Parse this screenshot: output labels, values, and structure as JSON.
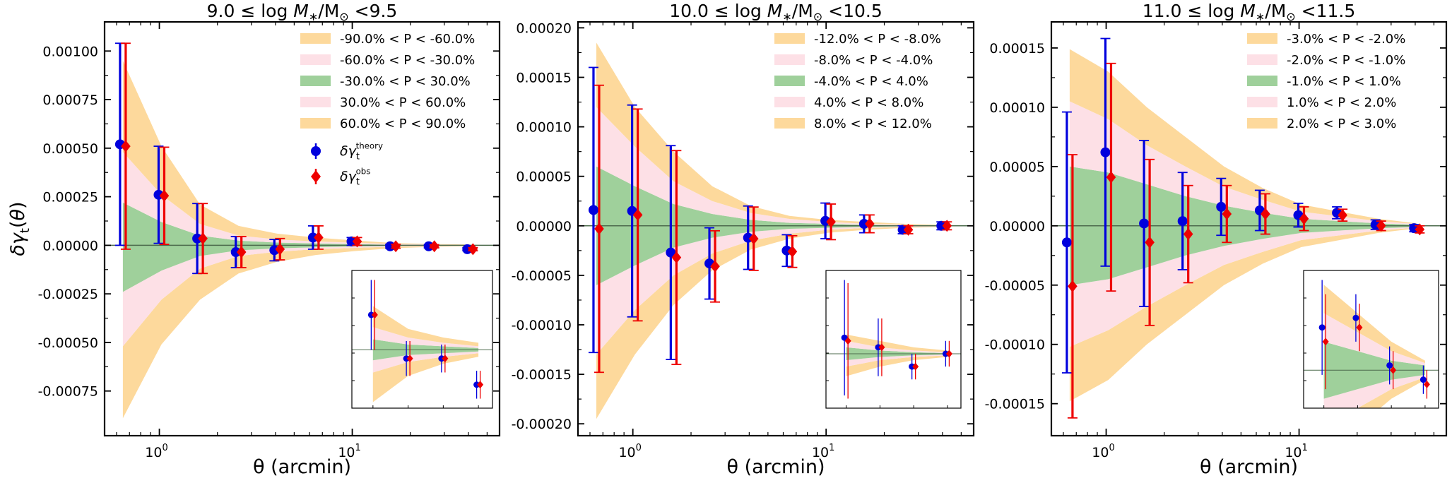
{
  "figure": {
    "ylabel": "δγ_t(θ)",
    "colors": {
      "band_outer": "#fdd99c",
      "band_mid": "#fde0e6",
      "band_inner": "#9fd09b",
      "theory": "#0000dd",
      "obs": "#ee0000",
      "zero_line": "#4d6b4d"
    }
  },
  "chart_data": [
    {
      "type": "scatter",
      "title": "9.0 ≤ log M*/M⊙ <9.5",
      "title_prefix": "9.0",
      "title_suffix": "<9.5",
      "xlabel": "θ (arcmin)",
      "ylabel": "δγ_t(θ)",
      "xscale": "log",
      "xlim": [
        0.52,
        58
      ],
      "ylim": [
        -0.00098,
        0.00115
      ],
      "yticks": [
        -0.00075,
        -0.0005,
        -0.00025,
        0.0,
        0.00025,
        0.0005,
        0.00075,
        0.001
      ],
      "ytick_labels": [
        "-0.00075",
        "-0.00050",
        "-0.00025",
        "0.00000",
        "0.00025",
        "0.00050",
        "0.00075",
        "0.00100"
      ],
      "xticks": [
        1,
        10
      ],
      "xtick_labels": [
        "10^0",
        "10^1"
      ],
      "legend": {
        "bands": [
          "-90.0% < P < -60.0%",
          "-60.0% < P < -30.0%",
          "-30.0% < P < 30.0%",
          "30.0% < P < 60.0%",
          "60.0% < P < 90.0%"
        ],
        "theory": "δγ_t^theory",
        "obs": "δγ_t^obs"
      },
      "theta": [
        0.647,
        1.025,
        1.625,
        2.575,
        4.081,
        6.468,
        10.25,
        16.25,
        25.75,
        40.81
      ],
      "bands": {
        "p90": [
          0.00095,
          0.00051,
          0.00021,
          0.0001,
          6e-05,
          4e-05,
          2.5e-05,
          1.2e-05,
          7e-06,
          4e-06
        ],
        "p60": [
          0.00048,
          0.00026,
          0.00011,
          5e-05,
          3e-05,
          2e-05,
          1.3e-05,
          7e-06,
          4e-06,
          2e-06
        ],
        "p30": [
          0.00022,
          0.00012,
          5e-05,
          2.4e-05,
          1.4e-05,
          1e-05,
          6e-06,
          3e-06,
          2e-06,
          1e-06
        ],
        "m30": [
          -0.00024,
          -0.00013,
          -5.5e-05,
          -2.6e-05,
          -1.6e-05,
          -1e-05,
          -6e-06,
          -3e-06,
          -2e-06,
          -1e-06
        ],
        "m60": [
          -0.00052,
          -0.00028,
          -0.00012,
          -5.5e-05,
          -3.3e-05,
          -2e-05,
          -1.3e-05,
          -7e-06,
          -4e-06,
          -2e-06
        ],
        "m90": [
          -0.00089,
          -0.00051,
          -0.00028,
          -0.000145,
          -8.5e-05,
          -5e-05,
          -3e-05,
          -1.5e-05,
          -8e-06,
          -4e-06
        ]
      },
      "theory": {
        "y": [
          0.00052,
          0.00026,
          3.5e-05,
          -3.5e-05,
          -2.5e-05,
          4e-05,
          2e-05,
          -5e-06,
          -5e-06,
          -2e-05
        ],
        "err": [
          0.00052,
          0.00025,
          0.00018,
          8e-05,
          5.5e-05,
          6e-05,
          2e-05,
          1e-05,
          8e-06,
          8e-06
        ]
      },
      "obs": {
        "y": [
          0.00051,
          0.000255,
          3.5e-05,
          -3.5e-05,
          -2e-05,
          4e-05,
          2e-05,
          -5e-06,
          -5e-06,
          -2e-05
        ],
        "err": [
          0.00053,
          0.00025,
          0.00018,
          8e-05,
          5.5e-05,
          6e-05,
          2e-05,
          1e-05,
          8e-06,
          8e-06
        ]
      },
      "inset": {
        "points_from_index": 6
      }
    },
    {
      "type": "scatter",
      "title": "10.0 ≤ log M*/M⊙ <10.5",
      "title_prefix": "10.0",
      "title_suffix": "<10.5",
      "xlabel": "θ (arcmin)",
      "ylabel": "δγ_t(θ)",
      "xscale": "log",
      "xlim": [
        0.52,
        58
      ],
      "ylim": [
        -0.000212,
        0.000206
      ],
      "yticks": [
        -0.0002,
        -0.00015,
        -0.0001,
        -5e-05,
        0.0,
        5e-05,
        0.0001,
        0.00015,
        0.0002
      ],
      "ytick_labels": [
        "-0.00020",
        "-0.00015",
        "-0.00010",
        "-0.00005",
        "0.00000",
        "0.00005",
        "0.00010",
        "0.00015",
        "0.00020"
      ],
      "xticks": [
        1,
        10
      ],
      "xtick_labels": [
        "10^0",
        "10^1"
      ],
      "legend": {
        "bands": [
          "-12.0% < P < -8.0%",
          "-8.0% < P < -4.0%",
          "-4.0% < P < 4.0%",
          "4.0% < P < 8.0%",
          "8.0% < P < 12.0%"
        ]
      },
      "theta": [
        0.647,
        1.025,
        1.625,
        2.575,
        4.081,
        6.468,
        10.25,
        16.25,
        25.75,
        40.81
      ],
      "bands": {
        "p90": [
          0.000185,
          0.00012,
          7.5e-05,
          4e-05,
          2e-05,
          1e-05,
          6e-06,
          4e-06,
          2e-06,
          1e-06
        ],
        "p60": [
          0.00012,
          8e-05,
          4.5e-05,
          2.5e-05,
          1.3e-05,
          7e-06,
          4e-06,
          2e-06,
          1e-06,
          5e-07
        ],
        "p30": [
          6e-05,
          4e-05,
          2.2e-05,
          1.2e-05,
          6e-06,
          3e-06,
          2e-06,
          1e-06,
          5e-07,
          2e-07
        ],
        "m30": [
          -6e-05,
          -4e-05,
          -2.2e-05,
          -1.2e-05,
          -6e-06,
          -3e-06,
          -2e-06,
          -1e-06,
          -5e-07,
          -2e-07
        ],
        "m60": [
          -0.00013,
          -8.5e-05,
          -5e-05,
          -2.8e-05,
          -1.5e-05,
          -8e-06,
          -4e-06,
          -2e-06,
          -1e-06,
          -5e-07
        ],
        "m90": [
          -0.000195,
          -0.00013,
          -8e-05,
          -4.5e-05,
          -2.4e-05,
          -1.3e-05,
          -7e-06,
          -4e-06,
          -2e-06,
          -1e-06
        ]
      },
      "theory": {
        "y": [
          1.6e-05,
          1.5e-05,
          -2.7e-05,
          -3.8e-05,
          -1.2e-05,
          -2.5e-05,
          5e-06,
          2e-06,
          -4e-06,
          0.0
        ],
        "err": [
          0.000144,
          0.000107,
          0.000108,
          3.6e-05,
          3.2e-05,
          1.6e-05,
          1.8e-05,
          9e-06,
          4e-06,
          4e-06
        ]
      },
      "obs": {
        "y": [
          -3e-06,
          1.1e-05,
          -3.2e-05,
          -4.1e-05,
          -1.3e-05,
          -2.6e-05,
          4e-06,
          2e-06,
          -4e-06,
          0.0
        ],
        "err": [
          0.000145,
          0.000107,
          0.000108,
          3.6e-05,
          3.2e-05,
          1.6e-05,
          1.8e-05,
          9e-06,
          4e-06,
          4e-06
        ]
      },
      "inset": {
        "points_from_index": 6
      }
    },
    {
      "type": "scatter",
      "title": "11.0 ≤ log M*/M⊙ <11.5",
      "title_prefix": "11.0",
      "title_suffix": "<11.5",
      "xlabel": "θ (arcmin)",
      "ylabel": "δγ_t(θ)",
      "xscale": "log",
      "xlim": [
        0.52,
        58
      ],
      "ylim": [
        -0.000177,
        0.000172
      ],
      "yticks": [
        -0.00015,
        -0.0001,
        -5e-05,
        0.0,
        5e-05,
        0.0001,
        0.00015
      ],
      "ytick_labels": [
        "-0.00015",
        "-0.00010",
        "-0.00005",
        "0.00000",
        "0.00005",
        "0.00010",
        "0.00015"
      ],
      "xticks": [
        1,
        10
      ],
      "xtick_labels": [
        "10^0",
        "10^1"
      ],
      "legend": {
        "bands": [
          "-3.0% < P < -2.0%",
          "-2.0% < P < -1.0%",
          "-1.0% < P < 1.0%",
          "1.0% < P < 2.0%",
          "2.0% < P < 3.0%"
        ]
      },
      "theta": [
        0.647,
        1.025,
        1.625,
        2.575,
        4.081,
        6.468,
        10.25,
        16.25,
        25.75,
        40.81
      ],
      "bands": {
        "p90": [
          0.000149,
          0.00013,
          0.0001,
          7.5e-05,
          5e-05,
          3.2e-05,
          1.8e-05,
          1.2e-05,
          6e-06,
          2e-06
        ],
        "p60": [
          0.000105,
          9e-05,
          6.8e-05,
          5e-05,
          3.3e-05,
          2.2e-05,
          1.2e-05,
          8e-06,
          4e-06,
          1.5e-06
        ],
        "p30": [
          5e-05,
          4.5e-05,
          3.5e-05,
          2.5e-05,
          1.7e-05,
          1.1e-05,
          6e-06,
          4e-06,
          2e-06,
          1e-06
        ],
        "m30": [
          -5e-05,
          -4.5e-05,
          -3.5e-05,
          -2.5e-05,
          -1.7e-05,
          -1.1e-05,
          -6e-06,
          -4e-06,
          -2e-06,
          -1e-06
        ],
        "m60": [
          -0.000102,
          -8.8e-05,
          -6.8e-05,
          -5e-05,
          -3.3e-05,
          -2.2e-05,
          -1.2e-05,
          -8e-06,
          -4e-06,
          -1.5e-06
        ],
        "m90": [
          -0.000148,
          -0.00013,
          -0.0001,
          -7.5e-05,
          -5e-05,
          -3.2e-05,
          -1.8e-05,
          -1.2e-05,
          -6e-06,
          -2e-06
        ]
      },
      "theory": {
        "y": [
          -1.4e-05,
          6.2e-05,
          2e-06,
          4e-06,
          1.6e-05,
          1.3e-05,
          9e-06,
          1.1e-05,
          1e-06,
          -2e-06
        ],
        "err": [
          0.00011,
          9.6e-05,
          7e-05,
          4.1e-05,
          2.4e-05,
          1.7e-05,
          1e-05,
          5e-06,
          4e-06,
          3e-06
        ]
      },
      "obs": {
        "y": [
          -5.1e-05,
          4.1e-05,
          -1.4e-05,
          -7e-06,
          1e-05,
          1e-05,
          6e-06,
          9e-06,
          0.0,
          -3e-06
        ],
        "err": [
          0.000111,
          9.6e-05,
          7e-05,
          4.1e-05,
          2.4e-05,
          1.7e-05,
          1e-05,
          5e-06,
          4e-06,
          3e-06
        ]
      },
      "inset": {
        "points_from_index": 6
      }
    }
  ]
}
